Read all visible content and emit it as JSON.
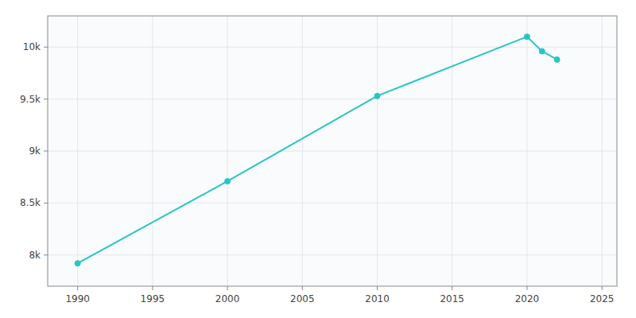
{
  "chart_data": {
    "type": "line",
    "x": [
      1990,
      2000,
      2010,
      2020,
      2021,
      2022
    ],
    "values": [
      7920,
      8710,
      9530,
      10100,
      9960,
      9880
    ],
    "color": "#26c6c6",
    "marker": "circle",
    "xlim": [
      1988,
      2026
    ],
    "ylim": [
      7700,
      10300
    ],
    "xticks": [
      1990,
      1995,
      2000,
      2005,
      2010,
      2015,
      2020,
      2025
    ],
    "yticks": [
      {
        "value": 8000,
        "label": "8k"
      },
      {
        "value": 8500,
        "label": "8.5k"
      },
      {
        "value": 9000,
        "label": "9k"
      },
      {
        "value": 9500,
        "label": "9.5k"
      },
      {
        "value": 10000,
        "label": "10k"
      }
    ],
    "grid": true
  }
}
